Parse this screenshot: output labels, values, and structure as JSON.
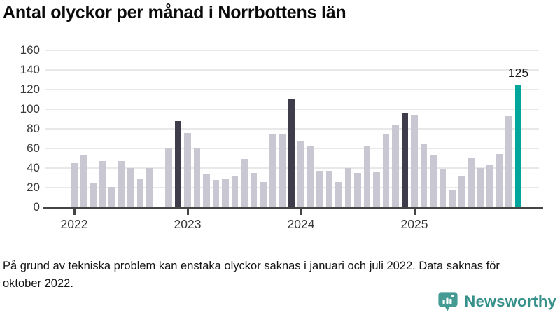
{
  "chart_data": {
    "type": "bar",
    "title": "Antal olyckor per månad i Norrbottens län",
    "xlabel": "",
    "ylabel": "",
    "ylim": [
      0,
      160
    ],
    "y_ticks": [
      0,
      20,
      40,
      60,
      80,
      100,
      120,
      140,
      160
    ],
    "x_tick_labels": [
      "2022",
      "2023",
      "2024",
      "2025"
    ],
    "grid": "horizontal",
    "series": [
      {
        "year": "2022",
        "values": [
          45,
          53,
          25,
          47,
          21,
          47,
          40,
          29,
          40,
          null,
          60,
          88
        ]
      },
      {
        "year": "2023",
        "values": [
          76,
          60,
          34,
          28,
          29,
          32,
          49,
          35,
          26,
          74,
          74,
          110
        ]
      },
      {
        "year": "2024",
        "values": [
          67,
          62,
          37,
          37,
          26,
          40,
          35,
          62,
          36,
          74,
          84,
          96
        ]
      },
      {
        "year": "2025",
        "values": [
          94,
          65,
          53,
          39,
          17,
          32,
          51,
          40,
          43,
          54,
          93,
          125
        ]
      }
    ],
    "december_indices": [
      11,
      23,
      35
    ],
    "latest_index": 47,
    "last_value_label": "125",
    "colors": {
      "bar_default": "#c9c7d2",
      "bar_december": "#3f3c4b",
      "bar_latest": "#00a59b",
      "gridline": "#e8e8e8",
      "axis": "#454545"
    }
  },
  "footnote": "På grund av tekniska problem kan enstaka olyckor saknas i januari och juli 2022. Data saknas för oktober 2022.",
  "logo": {
    "wordmark": "Newsworthy",
    "icon_color": "#459a94",
    "text_color": "#37918b"
  }
}
